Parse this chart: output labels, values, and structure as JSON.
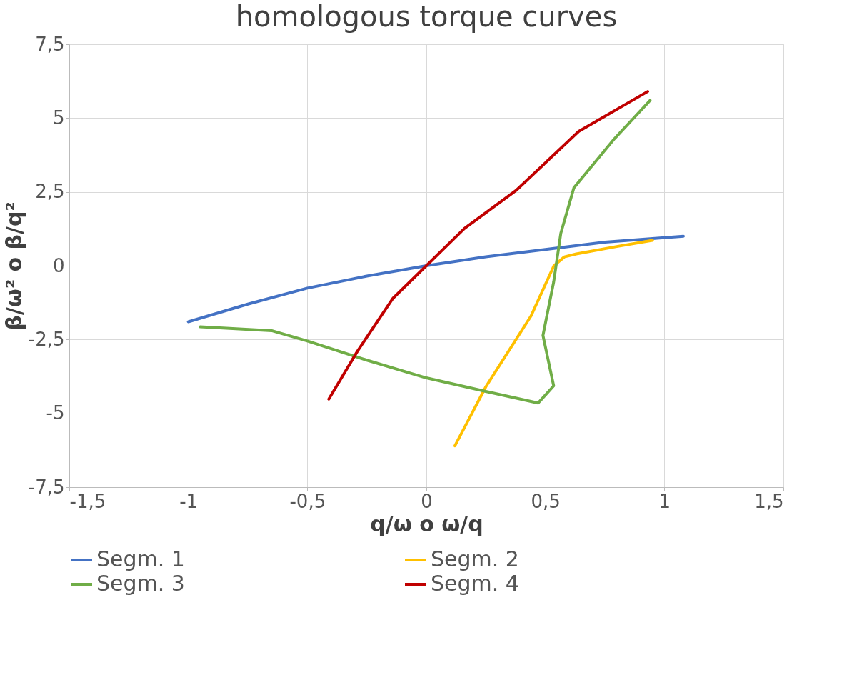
{
  "chart_data": {
    "type": "line",
    "title": "homologous torque curves",
    "xlabel": "q/ω o ω/q",
    "ylabel": "β/ω² o β/q²",
    "xlim": [
      -1.5,
      1.5
    ],
    "ylim": [
      -7.5,
      7.5
    ],
    "xticks": [
      {
        "value": -1.5,
        "label": "-1,5"
      },
      -1,
      {
        "value": -0.5,
        "label": "-0,5"
      },
      0,
      {
        "value": 0.5,
        "label": "0,5"
      },
      1,
      {
        "value": 1.5,
        "label": "1,5"
      }
    ],
    "yticks": [
      {
        "value": -7.5,
        "label": "-7,5"
      },
      -5,
      {
        "value": -2.5,
        "label": "-2,5"
      },
      0,
      {
        "value": 2.5,
        "label": "2,5"
      },
      5,
      {
        "value": 7.5,
        "label": "7,5"
      }
    ],
    "grid": true,
    "legend": "bottom",
    "line_style": "solid",
    "marker": "none",
    "series": [
      {
        "name": "Segm. 1",
        "color": "#4472c4",
        "x": [
          -1,
          -0.75,
          -0.5,
          -0.25,
          0,
          0.25,
          0.5,
          0.75,
          1.08
        ],
        "values": [
          -1.9,
          -1.3,
          -0.76,
          -0.35,
          0,
          0.3,
          0.55,
          0.8,
          1.0
        ]
      },
      {
        "name": "Segm. 2",
        "color": "#ffc000",
        "x": [
          0.12,
          0.25,
          0.44,
          0.536,
          0.58,
          0.63,
          0.8,
          0.95
        ],
        "values": [
          -6.1,
          -4.1,
          -1.7,
          0,
          0.3,
          0.4,
          0.65,
          0.86
        ]
      },
      {
        "name": "Segm. 3",
        "color": "#70ad47",
        "x": [
          -0.95,
          -0.65,
          -0.5,
          -0.25,
          0,
          0.24,
          0.47,
          0.535,
          0.49,
          0.535,
          0.565,
          0.62,
          0.79,
          0.94
        ],
        "values": [
          -2.07,
          -2.2,
          -2.55,
          -3.2,
          -3.8,
          -4.24,
          -4.65,
          -4.07,
          -2.36,
          -0.55,
          1.1,
          2.64,
          4.3,
          5.6
        ]
      },
      {
        "name": "Segm. 4",
        "color": "#c00000",
        "x": [
          -0.41,
          -0.29,
          -0.14,
          0,
          0.16,
          0.38,
          0.64,
          0.93
        ],
        "values": [
          -4.52,
          -2.9,
          -1.1,
          0,
          1.26,
          2.57,
          4.55,
          5.9
        ]
      }
    ]
  }
}
